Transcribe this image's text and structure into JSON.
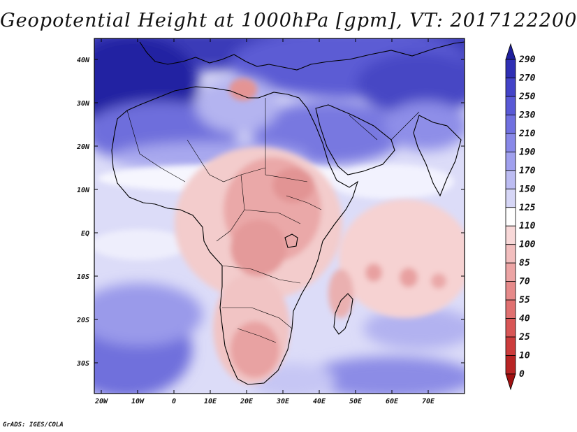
{
  "title": "Geopotential Height at 1000hPa [gpm], VT: 2017122200",
  "credit": "GrADS: IGES/COLA",
  "lat_labels": [
    "40N",
    "30N",
    "20N",
    "10N",
    "EQ",
    "10S",
    "20S",
    "30S"
  ],
  "lon_labels": [
    "20W",
    "10W",
    "0",
    "10E",
    "20E",
    "30E",
    "40E",
    "50E",
    "60E",
    "70E"
  ],
  "colorbar": {
    "labels": [
      "290",
      "270",
      "250",
      "230",
      "210",
      "190",
      "170",
      "150",
      "125",
      "110",
      "100",
      "85",
      "70",
      "55",
      "40",
      "25",
      "10",
      "0"
    ],
    "colors": [
      "#1f1f9c",
      "#2f2fb4",
      "#4343c8",
      "#5959d6",
      "#7070e0",
      "#8888e8",
      "#a0a0ee",
      "#bcbcf2",
      "#d6d6f6",
      "#ffffff",
      "#f8d8d8",
      "#f2bebe",
      "#eca4a4",
      "#e68a8a",
      "#e07070",
      "#d85656",
      "#cc3c3c",
      "#b82424",
      "#a01010"
    ]
  },
  "colors": {
    "deep_blue": "#2b2ba8",
    "mid_blue": "#7c7ce4",
    "light_blue": "#d4d4f6",
    "pink": "#f2c2c2",
    "red": "#e48a8a"
  }
}
